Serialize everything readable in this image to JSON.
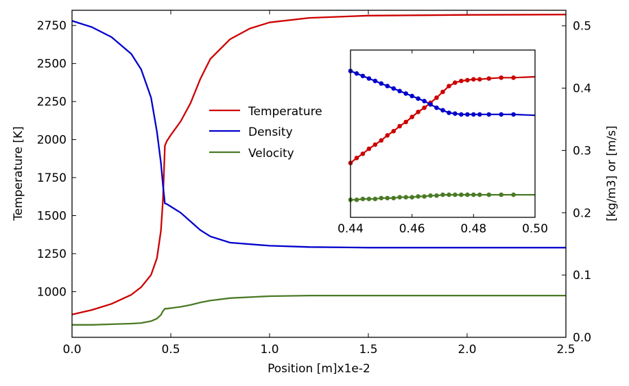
{
  "chart_data": {
    "type": "line",
    "xlabel": "Position [m]x1e-2",
    "ylabel_left": "Temperature [K]",
    "ylabel_right": "[kg/m3] or [m/s]",
    "xlim": [
      0.0,
      2.5
    ],
    "ylim_left": [
      700,
      2850
    ],
    "ylim_right": [
      0.0,
      0.525
    ],
    "x_ticks": [
      "0.0",
      "0.5",
      "1.0",
      "1.5",
      "2.0",
      "2.5"
    ],
    "y_left_ticks": [
      "1000",
      "1250",
      "1500",
      "1750",
      "2000",
      "2250",
      "2500",
      "2750"
    ],
    "y_right_ticks": [
      "0.0",
      "0.1",
      "0.2",
      "0.3",
      "0.4",
      "0.5"
    ],
    "legend_position": "center",
    "grid": false,
    "series": [
      {
        "name": "Temperature",
        "axis": "left",
        "color": "#cc0000",
        "x": [
          0.0,
          0.1,
          0.2,
          0.3,
          0.35,
          0.4,
          0.43,
          0.45,
          0.46,
          0.47,
          0.48,
          0.5,
          0.55,
          0.6,
          0.65,
          0.7,
          0.8,
          0.9,
          1.0,
          1.2,
          1.5,
          2.0,
          2.5
        ],
        "y": [
          850,
          880,
          920,
          980,
          1030,
          1110,
          1220,
          1400,
          1600,
          1960,
          1990,
          2030,
          2120,
          2240,
          2400,
          2530,
          2660,
          2730,
          2770,
          2800,
          2815,
          2820,
          2822
        ]
      },
      {
        "name": "Density",
        "axis": "right",
        "color": "#0000cc",
        "x": [
          0.0,
          0.1,
          0.2,
          0.3,
          0.35,
          0.4,
          0.43,
          0.45,
          0.46,
          0.47,
          0.48,
          0.55,
          0.6,
          0.65,
          0.7,
          0.8,
          1.0,
          1.2,
          1.5,
          2.0,
          2.5
        ],
        "y": [
          0.508,
          0.498,
          0.482,
          0.455,
          0.43,
          0.385,
          0.33,
          0.28,
          0.245,
          0.215,
          0.214,
          0.2,
          0.186,
          0.172,
          0.162,
          0.152,
          0.147,
          0.145,
          0.144,
          0.144,
          0.144
        ]
      },
      {
        "name": "Velocity",
        "axis": "right",
        "color": "#4a7a25",
        "x": [
          0.0,
          0.1,
          0.2,
          0.3,
          0.35,
          0.4,
          0.43,
          0.45,
          0.46,
          0.47,
          0.48,
          0.55,
          0.6,
          0.65,
          0.7,
          0.8,
          1.0,
          1.2,
          1.5,
          2.0,
          2.5
        ],
        "y": [
          0.02,
          0.02,
          0.021,
          0.022,
          0.023,
          0.026,
          0.03,
          0.036,
          0.042,
          0.046,
          0.046,
          0.049,
          0.052,
          0.056,
          0.059,
          0.063,
          0.066,
          0.067,
          0.067,
          0.067,
          0.067
        ]
      }
    ],
    "inset": {
      "xlim": [
        0.44,
        0.5
      ],
      "x_ticks": [
        "0.44",
        "0.46",
        "0.48",
        "0.50"
      ],
      "series": [
        {
          "name": "Temperature",
          "color": "#cc0000",
          "x": [
            0.44,
            0.442,
            0.444,
            0.446,
            0.448,
            0.45,
            0.452,
            0.454,
            0.456,
            0.458,
            0.46,
            0.462,
            0.464,
            0.466,
            0.468,
            0.47,
            0.472,
            0.474,
            0.476,
            0.478,
            0.48,
            0.482,
            0.485,
            0.489,
            0.493,
            0.5
          ],
          "y": [
            0.265,
            0.271,
            0.276,
            0.282,
            0.287,
            0.292,
            0.298,
            0.303,
            0.309,
            0.314,
            0.32,
            0.326,
            0.331,
            0.337,
            0.343,
            0.35,
            0.357,
            0.361,
            0.363,
            0.364,
            0.365,
            0.365,
            0.366,
            0.367,
            0.367,
            0.368
          ]
        },
        {
          "name": "Density",
          "color": "#0000cc",
          "x": [
            0.44,
            0.442,
            0.444,
            0.446,
            0.448,
            0.45,
            0.452,
            0.454,
            0.456,
            0.458,
            0.46,
            0.462,
            0.464,
            0.466,
            0.468,
            0.47,
            0.472,
            0.474,
            0.476,
            0.478,
            0.48,
            0.482,
            0.485,
            0.489,
            0.493,
            0.5
          ],
          "y": [
            0.375,
            0.372,
            0.369,
            0.366,
            0.363,
            0.36,
            0.357,
            0.354,
            0.351,
            0.348,
            0.345,
            0.342,
            0.339,
            0.335,
            0.331,
            0.328,
            0.325,
            0.324,
            0.323,
            0.323,
            0.323,
            0.323,
            0.323,
            0.323,
            0.323,
            0.322
          ]
        },
        {
          "name": "Velocity",
          "color": "#4a7a25",
          "x": [
            0.44,
            0.442,
            0.444,
            0.446,
            0.448,
            0.45,
            0.452,
            0.454,
            0.456,
            0.458,
            0.46,
            0.462,
            0.464,
            0.466,
            0.468,
            0.47,
            0.472,
            0.474,
            0.476,
            0.478,
            0.48,
            0.482,
            0.485,
            0.489,
            0.493,
            0.5
          ],
          "y": [
            0.221,
            0.221,
            0.222,
            0.222,
            0.222,
            0.223,
            0.223,
            0.223,
            0.224,
            0.224,
            0.224,
            0.225,
            0.225,
            0.226,
            0.226,
            0.227,
            0.227,
            0.227,
            0.227,
            0.227,
            0.227,
            0.227,
            0.227,
            0.227,
            0.227,
            0.227
          ]
        }
      ]
    }
  }
}
